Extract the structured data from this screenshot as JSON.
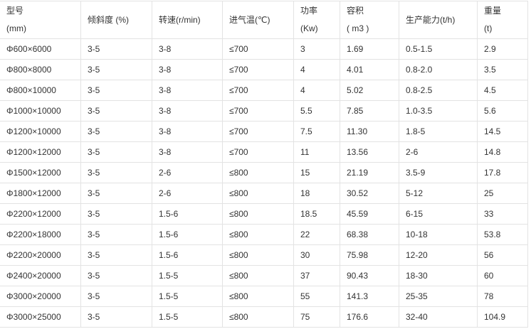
{
  "headers": [
    [
      "型号",
      "(mm)"
    ],
    [
      "倾斜度 (%)",
      ""
    ],
    [
      "转速(r/min)",
      ""
    ],
    [
      "进气温(℃)",
      ""
    ],
    [
      "功率",
      "(Kw)"
    ],
    [
      "容积",
      "( m3 )"
    ],
    [
      "生产能力(t/h)",
      ""
    ],
    [
      "重量",
      "(t)"
    ]
  ],
  "rows": [
    [
      "Φ600×6000",
      "3-5",
      "3-8",
      "≤700",
      "3",
      "1.69",
      "0.5-1.5",
      "2.9"
    ],
    [
      "Φ800×8000",
      "3-5",
      "3-8",
      "≤700",
      "4",
      "4.01",
      "0.8-2.0",
      "3.5"
    ],
    [
      "Φ800×10000",
      "3-5",
      "3-8",
      "≤700",
      "4",
      "5.02",
      "0.8-2.5",
      "4.5"
    ],
    [
      "Φ1000×10000",
      "3-5",
      "3-8",
      "≤700",
      "5.5",
      "7.85",
      "1.0-3.5",
      "5.6"
    ],
    [
      "Φ1200×10000",
      "3-5",
      "3-8",
      "≤700",
      "7.5",
      "11.30",
      "1.8-5",
      "14.5"
    ],
    [
      "Φ1200×12000",
      "3-5",
      "3-8",
      "≤700",
      "11",
      "13.56",
      "2-6",
      "14.8"
    ],
    [
      "Φ1500×12000",
      "3-5",
      "2-6",
      "≤800",
      "15",
      "21.19",
      "3.5-9",
      "17.8"
    ],
    [
      "Φ1800×12000",
      "3-5",
      "2-6",
      "≤800",
      "18",
      "30.52",
      "5-12",
      "25"
    ],
    [
      "Φ2200×12000",
      "3-5",
      "1.5-6",
      "≤800",
      "18.5",
      "45.59",
      "6-15",
      "33"
    ],
    [
      "Φ2200×18000",
      "3-5",
      "1.5-6",
      "≤800",
      "22",
      "68.38",
      "10-18",
      "53.8"
    ],
    [
      "Φ2200×20000",
      "3-5",
      "1.5-6",
      "≤800",
      "30",
      "75.98",
      "12-20",
      "56"
    ],
    [
      "Φ2400×20000",
      "3-5",
      "1.5-5",
      "≤800",
      "37",
      "90.43",
      "18-30",
      "60"
    ],
    [
      "Φ3000×20000",
      "3-5",
      "1.5-5",
      "≤800",
      "55",
      "141.3",
      "25-35",
      "78"
    ],
    [
      "Φ3000×25000",
      "3-5",
      "1.5-5",
      "≤800",
      "75",
      "176.6",
      "32-40",
      "104.9"
    ]
  ]
}
